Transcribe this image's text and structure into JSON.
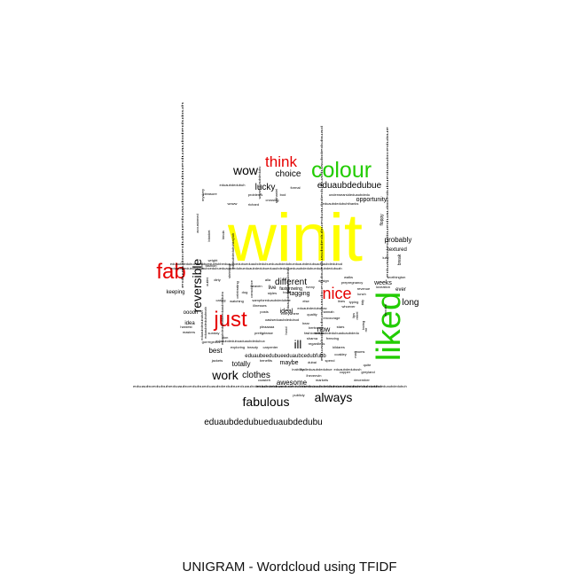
{
  "caption": "UNIGRAM - Wordcloud using TFIDF",
  "colors": {
    "top": "#ffff00",
    "high": "#22cc00",
    "mid": "#e60000",
    "low": "#000000"
  },
  "chart_data": {
    "type": "wordcloud",
    "title": "UNIGRAM - Wordcloud using TFIDF",
    "words": [
      {
        "text": "winit",
        "weight": 100,
        "color": "#ffff00",
        "rot": 0
      },
      {
        "text": "liked",
        "weight": 44,
        "color": "#22cc00",
        "rot": -90
      },
      {
        "text": "colour",
        "weight": 36,
        "color": "#22cc00",
        "rot": 0
      },
      {
        "text": "fab",
        "weight": 33,
        "color": "#e60000",
        "rot": 0
      },
      {
        "text": "just",
        "weight": 33,
        "color": "#e60000",
        "rot": 0
      },
      {
        "text": "think",
        "weight": 25,
        "color": "#e60000",
        "rot": 0
      },
      {
        "text": "nice",
        "weight": 25,
        "color": "#e60000",
        "rot": 0
      },
      {
        "text": "reversible",
        "weight": 19,
        "color": "#000000",
        "rot": -90
      },
      {
        "text": "wow",
        "weight": 17,
        "color": "#000000",
        "rot": 0
      },
      {
        "text": "work",
        "weight": 17,
        "color": "#000000",
        "rot": 0
      },
      {
        "text": "fabulous",
        "weight": 17,
        "color": "#000000",
        "rot": 0
      },
      {
        "text": "always",
        "weight": 16,
        "color": "#000000",
        "rot": 0
      },
      {
        "text": "lucky",
        "weight": 13,
        "color": "#000000",
        "rot": 0
      },
      {
        "text": "choice",
        "weight": 13,
        "color": "#000000",
        "rot": 0
      },
      {
        "text": "eduaubdedubue",
        "weight": 12,
        "color": "#000000",
        "rot": 0
      },
      {
        "text": "eduaubdedubueduaubdedubu",
        "weight": 12,
        "color": "#000000",
        "rot": 0
      },
      {
        "text": "clothes",
        "weight": 12,
        "color": "#000000",
        "rot": 0
      },
      {
        "text": "different",
        "weight": 12,
        "color": "#000000",
        "rot": 0
      },
      {
        "text": "long",
        "weight": 12,
        "color": "#000000",
        "rot": 0
      },
      {
        "text": "ill",
        "weight": 12,
        "color": "#000000",
        "rot": 0
      },
      {
        "text": "probably",
        "weight": 11,
        "color": "#000000",
        "rot": 0
      },
      {
        "text": "best",
        "weight": 10,
        "color": "#000000",
        "rot": 0
      },
      {
        "text": "totally",
        "weight": 9,
        "color": "#000000",
        "rot": 0
      },
      {
        "text": "awesome",
        "weight": 9,
        "color": "#000000",
        "rot": 0
      },
      {
        "text": "now",
        "weight": 9,
        "color": "#000000",
        "rot": 0
      },
      {
        "text": "maybe",
        "weight": 8,
        "color": "#000000",
        "rot": 0
      },
      {
        "text": "opportunity",
        "weight": 8,
        "color": "#000000",
        "rot": 0
      },
      {
        "text": "textured",
        "weight": 7,
        "color": "#000000",
        "rot": 0
      },
      {
        "text": "weeks",
        "weight": 7,
        "color": "#000000",
        "rot": 0
      },
      {
        "text": "ever",
        "weight": 7,
        "color": "#000000",
        "rot": 0
      },
      {
        "text": "ideal",
        "weight": 7,
        "color": "#000000",
        "rot": 0
      },
      {
        "text": "keeping",
        "weight": 6,
        "color": "#000000",
        "rot": 0
      },
      {
        "text": "ooooh",
        "weight": 6,
        "color": "#000000",
        "rot": 0
      },
      {
        "text": "idea",
        "weight": 6,
        "color": "#000000",
        "rot": 0
      },
      {
        "text": "live",
        "weight": 6,
        "color": "#000000",
        "rot": 0
      },
      {
        "text": "fastgrowing",
        "weight": 6,
        "color": "#000000",
        "rot": 0
      },
      {
        "text": "tagging",
        "weight": 6,
        "color": "#000000",
        "rot": 0
      },
      {
        "text": "eduaubeedubueeduaubcedubfubb",
        "weight": 6,
        "color": "#000000",
        "rot": 0
      },
      {
        "text": "floppy",
        "weight": 5,
        "color": "#000000",
        "rot": -90
      },
      {
        "text": "break",
        "weight": 5,
        "color": "#000000",
        "rot": -90
      },
      {
        "text": "eduaubdedubuh",
        "weight": 5,
        "color": "#000000",
        "rot": 0
      },
      {
        "text": "underwearsideduaubdedu",
        "weight": 5,
        "color": "#000000",
        "rot": 0
      },
      {
        "text": "eduaubdedubuhthanks",
        "weight": 5,
        "color": "#000000",
        "rot": 0
      },
      {
        "text": "pleasure",
        "weight": 5,
        "color": "#000000",
        "rot": 0
      },
      {
        "text": "problems",
        "weight": 5,
        "color": "#000000",
        "rot": 0
      },
      {
        "text": "bod",
        "weight": 5,
        "color": "#000000",
        "rot": 0
      },
      {
        "text": "formal",
        "weight": 5,
        "color": "#000000",
        "rot": 0
      },
      {
        "text": "crossing",
        "weight": 5,
        "color": "#000000",
        "rot": 0
      },
      {
        "text": "richard",
        "weight": 5,
        "color": "#000000",
        "rot": 0
      },
      {
        "text": "woww",
        "weight": 5,
        "color": "#000000",
        "rot": 0
      },
      {
        "text": "luxy",
        "weight": 5,
        "color": "#000000",
        "rot": 0
      },
      {
        "text": "worthington",
        "weight": 5,
        "color": "#000000",
        "rot": 0
      },
      {
        "text": "wright",
        "weight": 5,
        "color": "#000000",
        "rot": 0
      },
      {
        "text": "fashion",
        "weight": 5,
        "color": "#000000",
        "rot": 0
      },
      {
        "text": "dirty",
        "weight": 5,
        "color": "#000000",
        "rot": 0
      },
      {
        "text": "alla",
        "weight": 5,
        "color": "#000000",
        "rot": 0
      },
      {
        "text": "heaven",
        "weight": 5,
        "color": "#000000",
        "rot": 0
      },
      {
        "text": "funny",
        "weight": 5,
        "color": "#000000",
        "rot": 0
      },
      {
        "text": "design",
        "weight": 5,
        "color": "#000000",
        "rot": 0
      },
      {
        "text": "walks",
        "weight": 5,
        "color": "#000000",
        "rot": 0
      },
      {
        "text": "prepregnancy",
        "weight": 5,
        "color": "#000000",
        "rot": 0
      },
      {
        "text": "revenue",
        "weight": 5,
        "color": "#000000",
        "rot": 0
      },
      {
        "text": "lunch",
        "weight": 5,
        "color": "#000000",
        "rot": 0
      },
      {
        "text": "loveation",
        "weight": 5,
        "color": "#000000",
        "rot": 0
      },
      {
        "text": "dog",
        "weight": 5,
        "color": "#000000",
        "rot": 0
      },
      {
        "text": "styles",
        "weight": 5,
        "color": "#000000",
        "rot": 0
      },
      {
        "text": "boyf",
        "weight": 5,
        "color": "#000000",
        "rot": 0
      },
      {
        "text": "caring",
        "weight": 5,
        "color": "#000000",
        "rot": 0
      },
      {
        "text": "watching",
        "weight": 5,
        "color": "#000000",
        "rot": 0
      },
      {
        "text": "sampforeduaubdedubue",
        "weight": 5,
        "color": "#000000",
        "rot": 0
      },
      {
        "text": "else",
        "weight": 5,
        "color": "#000000",
        "rot": 0
      },
      {
        "text": "lines",
        "weight": 5,
        "color": "#000000",
        "rot": 0
      },
      {
        "text": "typing",
        "weight": 5,
        "color": "#000000",
        "rot": 0
      },
      {
        "text": "illnesses",
        "weight": 5,
        "color": "#000000",
        "rot": 0
      },
      {
        "text": "eduaubdedubuuac",
        "weight": 5,
        "color": "#000000",
        "rot": 0
      },
      {
        "text": "whoever",
        "weight": 5,
        "color": "#000000",
        "rot": 0
      },
      {
        "text": "posts",
        "weight": 5,
        "color": "#000000",
        "rot": 0
      },
      {
        "text": "quality",
        "weight": 5,
        "color": "#000000",
        "rot": 0
      },
      {
        "text": "hannah",
        "weight": 5,
        "color": "#000000",
        "rot": 0
      },
      {
        "text": "everywhere",
        "weight": 5,
        "color": "#000000",
        "rot": 0
      },
      {
        "text": "encourage",
        "weight": 5,
        "color": "#000000",
        "rot": 0
      },
      {
        "text": "oasiseduaubdedubud",
        "weight": 5,
        "color": "#000000",
        "rot": 0
      },
      {
        "text": "hear",
        "weight": 5,
        "color": "#000000",
        "rot": 0
      },
      {
        "text": "bertram",
        "weight": 5,
        "color": "#000000",
        "rot": 0
      },
      {
        "text": "hardest",
        "weight": 5,
        "color": "#000000",
        "rot": 0
      },
      {
        "text": "masters",
        "weight": 5,
        "color": "#000000",
        "rot": 0
      },
      {
        "text": "sunday",
        "weight": 5,
        "color": "#000000",
        "rot": 0
      },
      {
        "text": "pleaaaaa",
        "weight": 5,
        "color": "#000000",
        "rot": 0
      },
      {
        "text": "twitter",
        "weight": 5,
        "color": "#000000",
        "rot": 0
      },
      {
        "text": "stars",
        "weight": 5,
        "color": "#000000",
        "rot": 0
      },
      {
        "text": "pretty",
        "weight": 5,
        "color": "#000000",
        "rot": 0
      },
      {
        "text": "please",
        "weight": 5,
        "color": "#000000",
        "rot": 0
      },
      {
        "text": "fashioneduaubdedubuaduaubdedu",
        "weight": 5,
        "color": "#000000",
        "rot": 0
      },
      {
        "text": "sharna",
        "weight": 5,
        "color": "#000000",
        "rot": 0
      },
      {
        "text": "freezing",
        "weight": 5,
        "color": "#000000",
        "rot": 0
      },
      {
        "text": "don",
        "weight": 5,
        "color": "#000000",
        "rot": 0
      },
      {
        "text": "eduaubdedubuaduaubdedubux",
        "weight": 5,
        "color": "#000000",
        "rot": 0
      },
      {
        "text": "regardless",
        "weight": 5,
        "color": "#000000",
        "rot": 0
      },
      {
        "text": "kildares",
        "weight": 5,
        "color": "#000000",
        "rot": 0
      },
      {
        "text": "gorrrrgeous",
        "weight": 5,
        "color": "#000000",
        "rot": 0
      },
      {
        "text": "exploring",
        "weight": 5,
        "color": "#000000",
        "rot": 0
      },
      {
        "text": "beauty",
        "weight": 5,
        "color": "#000000",
        "rot": 0
      },
      {
        "text": "carpenter",
        "weight": 5,
        "color": "#000000",
        "rot": 0
      },
      {
        "text": "jackets",
        "weight": 5,
        "color": "#000000",
        "rot": 0
      },
      {
        "text": "benefits",
        "weight": 5,
        "color": "#000000",
        "rot": 0
      },
      {
        "text": "dubai",
        "weight": 5,
        "color": "#000000",
        "rot": 0
      },
      {
        "text": "spend",
        "weight": 5,
        "color": "#000000",
        "rot": 0
      },
      {
        "text": "coakley",
        "weight": 5,
        "color": "#000000",
        "rot": 0
      },
      {
        "text": "inability",
        "weight": 5,
        "color": "#000000",
        "rot": 0
      },
      {
        "text": "balleduaubdedubue",
        "weight": 5,
        "color": "#000000",
        "rot": 0
      },
      {
        "text": "greyland",
        "weight": 5,
        "color": "#000000",
        "rot": 0
      },
      {
        "text": "coasteh",
        "weight": 5,
        "color": "#000000",
        "rot": 0
      },
      {
        "text": "lhevenvin",
        "weight": 5,
        "color": "#000000",
        "rot": 0
      },
      {
        "text": "copper",
        "weight": 5,
        "color": "#000000",
        "rot": 0
      },
      {
        "text": "eduaubdedubush",
        "weight": 5,
        "color": "#000000",
        "rot": 0
      },
      {
        "text": "markets",
        "weight": 5,
        "color": "#000000",
        "rot": 0
      },
      {
        "text": "december",
        "weight": 5,
        "color": "#000000",
        "rot": 0
      },
      {
        "text": "mums",
        "weight": 5,
        "color": "#000000",
        "rot": 0
      },
      {
        "text": "quite",
        "weight": 5,
        "color": "#000000",
        "rot": 0
      },
      {
        "text": "publicly",
        "weight": 5,
        "color": "#000000",
        "rot": 0
      },
      {
        "text": "eduaubdedubuueduaubcedubfubbeduaubcedubueduaubdedubueduaubdedubueduaubdedubuh",
        "weight": 4,
        "color": "#000000",
        "rot": 0
      },
      {
        "text": "eduaubdedubueduaubcedubfubbeduaubcedubueduaubdedubueduaubdedubueduaubdedubuaduaubdedubud",
        "weight": 4,
        "color": "#000000",
        "rot": 0
      },
      {
        "text": "eduaubdedubuheduaubcedubueduaubdedubueduaubdedubueduaubdedubueduaubdedubueduaubdedubuah",
        "weight": 4,
        "color": "#000000",
        "rot": 0
      },
      {
        "text": "eduaubcedubuheduaubcedubueduaubdedubueduaubdedubueduaubdedubueduaubdedubueduaubdedubuahd",
        "weight": 4,
        "color": "#000000",
        "rot": 0
      },
      {
        "text": "eduaubdedubueduaubcedubueduaubdedubueduaubdedubuaduaubdedubuad",
        "weight": 4,
        "color": "#000000",
        "rot": -90
      },
      {
        "text": "eduaubdedubueduaubdedubueduaubcedubue",
        "weight": 4,
        "color": "#000000",
        "rot": -90
      },
      {
        "text": "eduaubcedubueduaubdedubueduaubdedubuh",
        "weight": 4,
        "color": "#000000",
        "rot": -90
      },
      {
        "text": "eduaubdedubuhkeeduaubdedubu",
        "weight": 4,
        "color": "#000000",
        "rot": -90
      },
      {
        "text": "eduaubdedubuhah",
        "weight": 4,
        "color": "#000000",
        "rot": -90
      },
      {
        "text": "eduaubdedubuhnah",
        "weight": 4,
        "color": "#000000",
        "rot": -90
      },
      {
        "text": "wayweduaubdedubu",
        "weight": 4,
        "color": "#000000",
        "rot": -90
      },
      {
        "text": "nathaniel",
        "weight": 4,
        "color": "#000000",
        "rot": -90
      },
      {
        "text": "mystery",
        "weight": 4,
        "color": "#000000",
        "rot": -90
      },
      {
        "text": "shrieking",
        "weight": 4,
        "color": "#000000",
        "rot": -90
      },
      {
        "text": "celebrating",
        "weight": 4,
        "color": "#000000",
        "rot": -90
      },
      {
        "text": "conscience",
        "weight": 4,
        "color": "#000000",
        "rot": -90
      },
      {
        "text": "accustomed",
        "weight": 4,
        "color": "#000000",
        "rot": -90
      },
      {
        "text": "eduaubdedubuhkaylah",
        "weight": 4,
        "color": "#000000",
        "rot": -90
      },
      {
        "text": "wooden",
        "weight": 4,
        "color": "#000000",
        "rot": -90
      },
      {
        "text": "rebel",
        "weight": 4,
        "color": "#000000",
        "rot": -90
      },
      {
        "text": "loving",
        "weight": 4,
        "color": "#000000",
        "rot": -90
      },
      {
        "text": "kinda",
        "weight": 4,
        "color": "#000000",
        "rot": -90
      },
      {
        "text": "blanket",
        "weight": 4,
        "color": "#000000",
        "rot": -90
      },
      {
        "text": "tidy",
        "weight": 4,
        "color": "#000000",
        "rot": -90
      },
      {
        "text": "hood",
        "weight": 4,
        "color": "#000000",
        "rot": -90
      },
      {
        "text": "lips",
        "weight": 4,
        "color": "#000000",
        "rot": -90
      },
      {
        "text": "mr",
        "weight": 4,
        "color": "#000000",
        "rot": -90
      },
      {
        "text": "mall",
        "weight": 4,
        "color": "#000000",
        "rot": -90
      },
      {
        "text": "vest",
        "weight": 4,
        "color": "#000000",
        "rot": -90
      },
      {
        "text": "outlet",
        "weight": 4,
        "color": "#000000",
        "rot": -90
      },
      {
        "text": "grace",
        "weight": 4,
        "color": "#000000",
        "rot": -90
      },
      {
        "text": "eduaubdedubuaduaubdedu",
        "weight": 4,
        "color": "#000000",
        "rot": -90
      }
    ]
  }
}
